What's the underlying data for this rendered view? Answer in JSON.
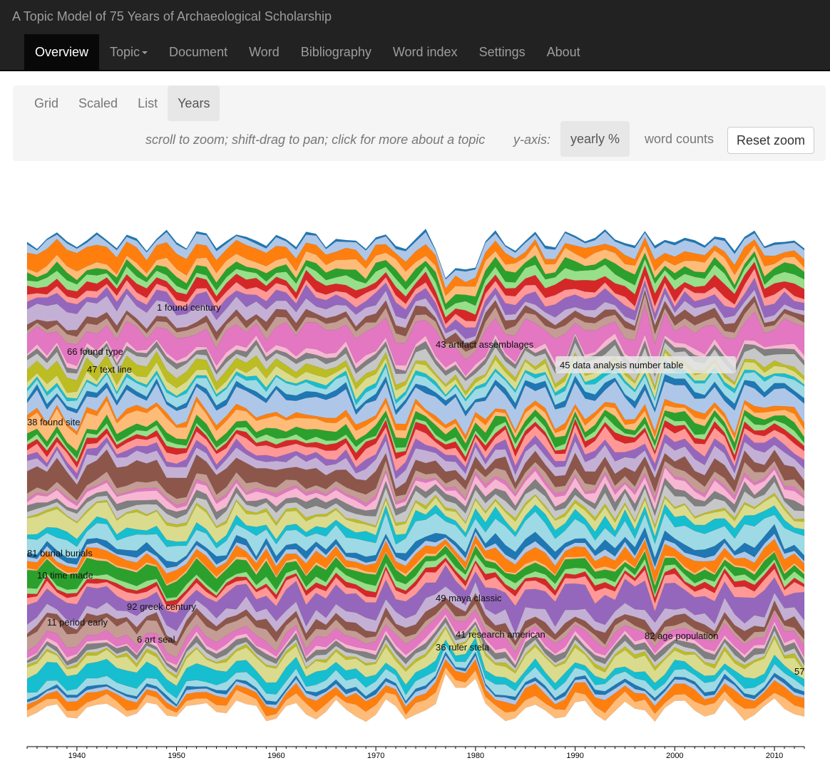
{
  "app": {
    "title": "A Topic Model of 75 Years of Archaeological Scholarship"
  },
  "nav": {
    "items": [
      {
        "label": "Overview",
        "active": true
      },
      {
        "label": "Topic",
        "dropdown": true
      },
      {
        "label": "Document"
      },
      {
        "label": "Word"
      },
      {
        "label": "Bibliography"
      },
      {
        "label": "Word index"
      },
      {
        "label": "Settings"
      },
      {
        "label": "About"
      }
    ]
  },
  "overview": {
    "tabs": [
      {
        "label": "Grid"
      },
      {
        "label": "Scaled"
      },
      {
        "label": "List"
      },
      {
        "label": "Years",
        "active": true
      }
    ],
    "hint": "scroll to zoom; shift-drag to pan; click for more about a topic",
    "yaxis_label": "y-axis:",
    "yaxis_options": [
      {
        "label": "yearly %",
        "active": true
      },
      {
        "label": "word counts"
      }
    ],
    "reset_label": "Reset zoom"
  },
  "chart_data": {
    "type": "area",
    "xlabel": "",
    "ylabel": "",
    "x_range": [
      1935,
      2013
    ],
    "x_ticks": [
      1940,
      1950,
      1960,
      1970,
      1980,
      1990,
      2000,
      2010
    ],
    "topic_labels": [
      {
        "text": "1 found century"
      },
      {
        "text": "66 found type"
      },
      {
        "text": "47 text line"
      },
      {
        "text": "43 artifact assemblages"
      },
      {
        "text": "45 data analysis number table",
        "highlighted": true
      },
      {
        "text": "38 found site"
      },
      {
        "text": "81 burial burials"
      },
      {
        "text": "10 time made"
      },
      {
        "text": "92 greek century"
      },
      {
        "text": "11 period early"
      },
      {
        "text": "6 art seal"
      },
      {
        "text": "49 maya classic"
      },
      {
        "text": "41 research american"
      },
      {
        "text": "36 ruler stela"
      },
      {
        "text": "82 age population"
      },
      {
        "text": "57"
      }
    ],
    "palette": [
      "#1f77b4",
      "#aec7e8",
      "#ff7f0e",
      "#ffbb78",
      "#2ca02c",
      "#98df8a",
      "#d62728",
      "#ff9896",
      "#9467bd",
      "#c5b0d5",
      "#8c564b",
      "#c49c94",
      "#e377c2",
      "#f7b6d2",
      "#7f7f7f",
      "#c7c7c7",
      "#bcbd22",
      "#dbdb8d",
      "#17becf",
      "#9edae5"
    ]
  }
}
